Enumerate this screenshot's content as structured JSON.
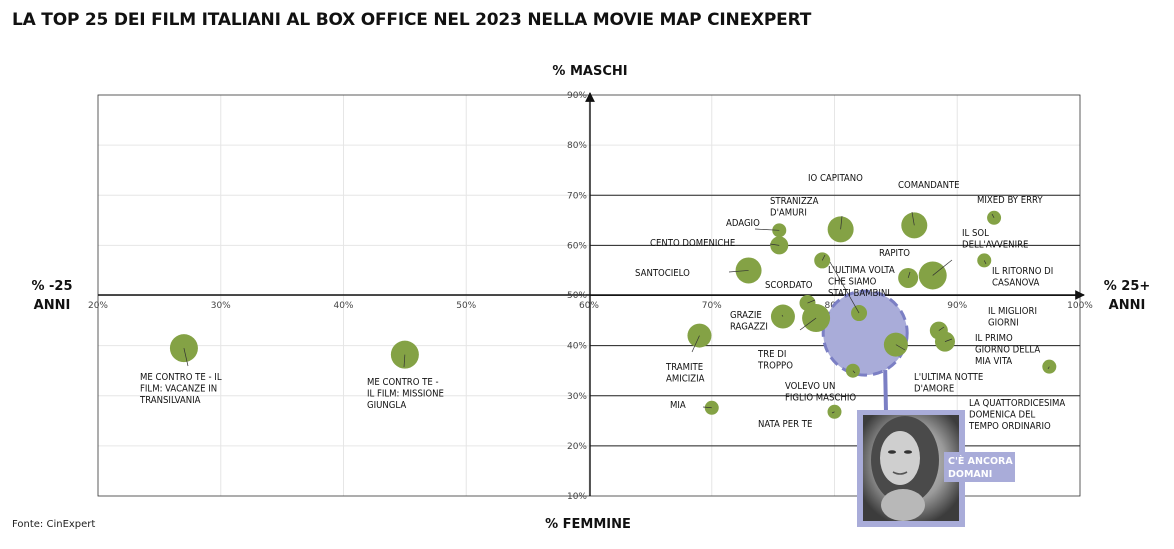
{
  "source": "Fonte: CinExpert",
  "chart_data": {
    "type": "scatter",
    "title": "LA TOP 25 DEI FILM ITALIANI AL BOX OFFICE NEL 2023 NELLA MOVIE MAP CINEXPERT",
    "ylabel_top": "% MASCHI",
    "ylabel_bottom": "% FEMMINE",
    "xlabel_left": [
      "% -25",
      "ANNI"
    ],
    "xlabel_right": [
      "% 25+",
      "ANNI"
    ],
    "xlim": [
      20,
      100
    ],
    "ylim": [
      10,
      90
    ],
    "x_ticks": [
      "20%",
      "30%",
      "40%",
      "50%",
      "60%",
      "70%",
      "80%",
      "90%",
      "100%"
    ],
    "y_ticks": [
      "90%",
      "80%",
      "70%",
      "60%",
      "50%",
      "40%",
      "30%",
      "20%",
      "10%"
    ],
    "point_color": "#84a245",
    "highlight_color": "#a9acd9",
    "points": [
      {
        "lines": [
          "ME CONTRO TE - IL",
          "FILM: VACANZE IN",
          "TRANSILVANIA"
        ],
        "x": 27,
        "y": 39.5,
        "size": 1.0
      },
      {
        "lines": [
          "ME CONTRO TE -",
          "IL FILM: MISSIONE",
          "GIUNGLA"
        ],
        "x": 45,
        "y": 38.2,
        "size": 1.0
      },
      {
        "lines": [
          "SANTOCIELO"
        ],
        "x": 73,
        "y": 55,
        "size": 0.9
      },
      {
        "lines": [
          "TRAMITE",
          "AMICIZIA"
        ],
        "x": 69,
        "y": 42,
        "size": 0.8
      },
      {
        "lines": [
          "MIA"
        ],
        "x": 70,
        "y": 27.6,
        "size": 0.3
      },
      {
        "lines": [
          "CENTO DOMENICHE"
        ],
        "x": 75.5,
        "y": 60,
        "size": 0.5
      },
      {
        "lines": [
          "ADAGIO"
        ],
        "x": 75.5,
        "y": 63,
        "size": 0.3
      },
      {
        "lines": [
          "STRANIZZA",
          "D'AMURI"
        ],
        "x": 79,
        "y": 57,
        "size": 0.4
      },
      {
        "lines": [
          "IO CAPITANO"
        ],
        "x": 80.5,
        "y": 63.2,
        "size": 0.9
      },
      {
        "lines": [
          "COMANDANTE"
        ],
        "x": 86.5,
        "y": 64,
        "size": 0.9
      },
      {
        "lines": [
          "MIXED BY ERRY"
        ],
        "x": 93,
        "y": 65.5,
        "size": 0.3
      },
      {
        "lines": [
          "IL SOL",
          "DELL'AVVENIRE"
        ],
        "x": 88,
        "y": 54,
        "size": 1.0
      },
      {
        "lines": [
          "RAPITO"
        ],
        "x": 86,
        "y": 53.5,
        "size": 0.6
      },
      {
        "lines": [
          "IL RITORNO DI",
          "CASANOVA"
        ],
        "x": 92.2,
        "y": 57,
        "size": 0.3
      },
      {
        "lines": [
          "L'ULTIMA VOLTA",
          "CHE SIAMO",
          "STATI BAMBINI"
        ],
        "x": 82,
        "y": 46.5,
        "size": 0.4
      },
      {
        "lines": [
          "SCORDATO"
        ],
        "x": 77.8,
        "y": 48.5,
        "size": 0.4
      },
      {
        "lines": [
          "GRAZIE",
          "RAGAZZI"
        ],
        "x": 75.8,
        "y": 45.8,
        "size": 0.8
      },
      {
        "lines": [
          "TRE DI",
          "TROPPO"
        ],
        "x": 78.5,
        "y": 45.5,
        "size": 1.0
      },
      {
        "lines": [
          "VOLEVO UN",
          "FIGLIO MASCHIO"
        ],
        "x": 81.5,
        "y": 35,
        "size": 0.3
      },
      {
        "lines": [
          "NATA PER TE"
        ],
        "x": 80,
        "y": 26.8,
        "size": 0.3
      },
      {
        "lines": [
          "L'ULTIMA NOTTE",
          "D'AMORE"
        ],
        "x": 85,
        "y": 40.2,
        "size": 0.8
      },
      {
        "lines": [
          "IL MIGLIORI",
          "GIORNI"
        ],
        "x": 88.5,
        "y": 43,
        "size": 0.5
      },
      {
        "lines": [
          "IL PRIMO",
          "GIORNO DELLA",
          "MIA VITA"
        ],
        "x": 89,
        "y": 40.8,
        "size": 0.6
      },
      {
        "lines": [
          "LA QUATTORDICESIMA",
          "DOMENICA DEL",
          "TEMPO ORDINARIO"
        ],
        "x": 97.5,
        "y": 35.8,
        "size": 0.3
      }
    ],
    "highlight": {
      "lines": [
        "C'È ANCORA",
        "DOMANI"
      ],
      "x": 82.5,
      "y": 42.5
    }
  }
}
